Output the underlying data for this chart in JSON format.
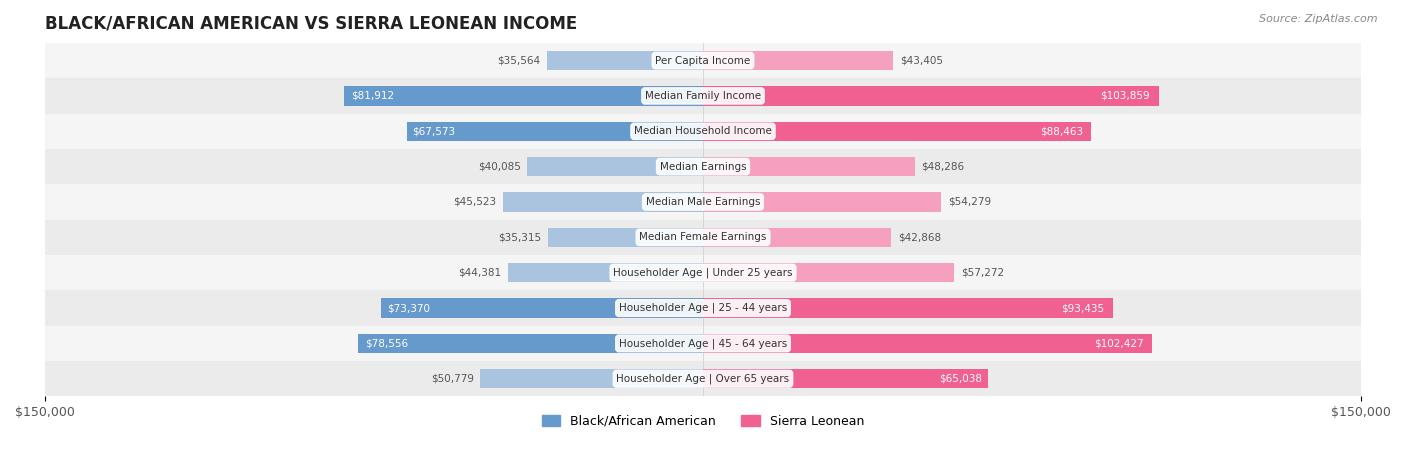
{
  "title": "BLACK/AFRICAN AMERICAN VS SIERRA LEONEAN INCOME",
  "source": "Source: ZipAtlas.com",
  "categories": [
    "Per Capita Income",
    "Median Family Income",
    "Median Household Income",
    "Median Earnings",
    "Median Male Earnings",
    "Median Female Earnings",
    "Householder Age | Under 25 years",
    "Householder Age | 25 - 44 years",
    "Householder Age | 45 - 64 years",
    "Householder Age | Over 65 years"
  ],
  "black_values": [
    35564,
    81912,
    67573,
    40085,
    45523,
    35315,
    44381,
    73370,
    78556,
    50779
  ],
  "sierra_values": [
    43405,
    103859,
    88463,
    48286,
    54279,
    42868,
    57272,
    93435,
    102427,
    65038
  ],
  "black_labels": [
    "$35,564",
    "$81,912",
    "$67,573",
    "$40,085",
    "$45,523",
    "$35,315",
    "$44,381",
    "$73,370",
    "$78,556",
    "$50,779"
  ],
  "sierra_labels": [
    "$43,405",
    "$103,859",
    "$88,463",
    "$48,286",
    "$54,279",
    "$42,868",
    "$57,272",
    "$93,435",
    "$102,427",
    "$65,038"
  ],
  "max_val": 150000,
  "color_black_strong": "#6699cc",
  "color_black_light": "#aac4e0",
  "color_sierra_strong": "#f06090",
  "color_sierra_light": "#f4a0be",
  "bg_row_odd": "#f5f5f5",
  "bg_row_even": "#ebebeb",
  "bar_height": 0.55,
  "legend_label_black": "Black/African American",
  "legend_label_sierra": "Sierra Leonean",
  "threshold_strong": 60000
}
